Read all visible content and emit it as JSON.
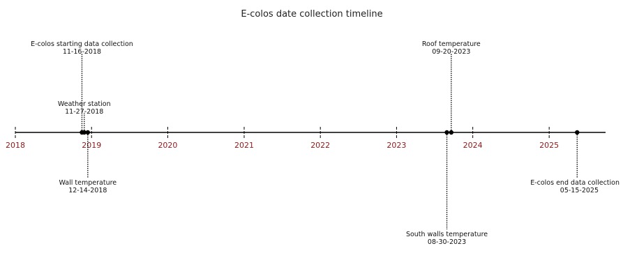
{
  "chart_data": {
    "type": "timeline",
    "title": "E-colos date collection timeline",
    "x_ticks": [
      "2018",
      "2019",
      "2020",
      "2021",
      "2022",
      "2023",
      "2024",
      "2025"
    ],
    "xlim": [
      "2018-01-01",
      "2025-09-01"
    ],
    "grid": false,
    "colors": {
      "axis": "#000000",
      "marker": "#000000",
      "tick_label": "#8b1a1a",
      "title": "#222222"
    },
    "events": [
      {
        "label": "E-colos starting data collection",
        "date_text": "11-16-2018",
        "date": "2018-11-16",
        "side": "above",
        "level": 2
      },
      {
        "label": "Weather station",
        "date_text": "11-27-2018",
        "date": "2018-11-27",
        "side": "above",
        "level": 1
      },
      {
        "label": "Wall temperature",
        "date_text": "12-14-2018",
        "date": "2018-12-14",
        "side": "below",
        "level": 1
      },
      {
        "label": "South walls temperature",
        "date_text": "08-30-2023",
        "date": "2023-08-30",
        "side": "below",
        "level": 2
      },
      {
        "label": "Roof temperature",
        "date_text": "09-20-2023",
        "date": "2023-09-20",
        "side": "above",
        "level": 2
      },
      {
        "label": "E-colos end data collection",
        "date_text": "05-15-2025",
        "date": "2025-05-15",
        "side": "below",
        "level": 1
      }
    ]
  }
}
